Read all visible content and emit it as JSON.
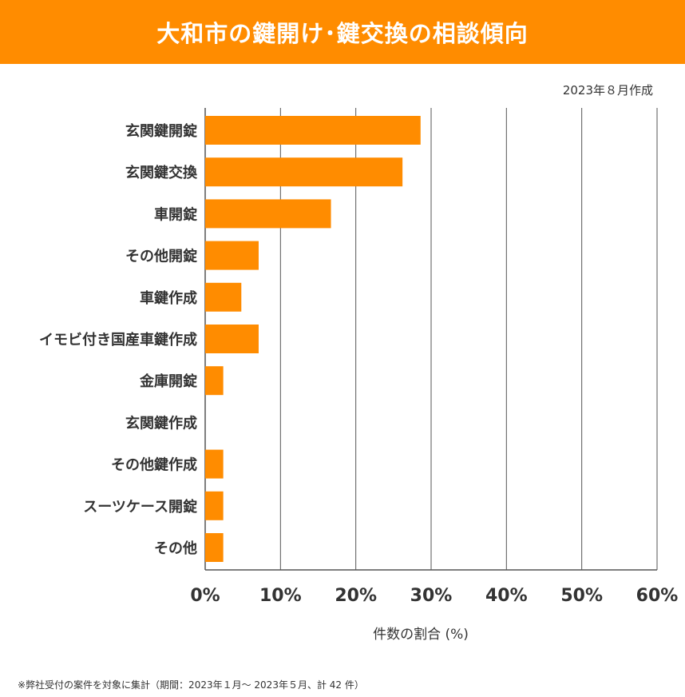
{
  "header": {
    "title": "大和市の鍵開け･鍵交換の相談傾向",
    "date_note": "2023年８月作成"
  },
  "footnote": "※弊社受付の案件を対象に集計（期間：2023年１月～ 2023年５月、計 42 件）",
  "colors": {
    "accent": "#FF8C00",
    "bar": "#FF8C00",
    "grid": "#555555",
    "text": "#333333"
  },
  "chart_data": {
    "type": "bar",
    "orientation": "horizontal",
    "categories": [
      "玄関鍵開錠",
      "玄関鍵交換",
      "車開錠",
      "その他開錠",
      "車鍵作成",
      "イモビ付き国産車鍵作成",
      "金庫開錠",
      "玄関鍵作成",
      "その他鍵作成",
      "スーツケース開錠",
      "その他"
    ],
    "values": [
      28.6,
      26.2,
      16.7,
      7.1,
      4.8,
      7.1,
      2.4,
      0,
      2.4,
      2.4,
      2.4
    ],
    "xlim": [
      0,
      60
    ],
    "xticks": [
      "0%",
      "10%",
      "20%",
      "30%",
      "40%",
      "50%",
      "60%"
    ],
    "xlabel": "件数の割合 (%)",
    "ylabel": "",
    "grid": true
  }
}
